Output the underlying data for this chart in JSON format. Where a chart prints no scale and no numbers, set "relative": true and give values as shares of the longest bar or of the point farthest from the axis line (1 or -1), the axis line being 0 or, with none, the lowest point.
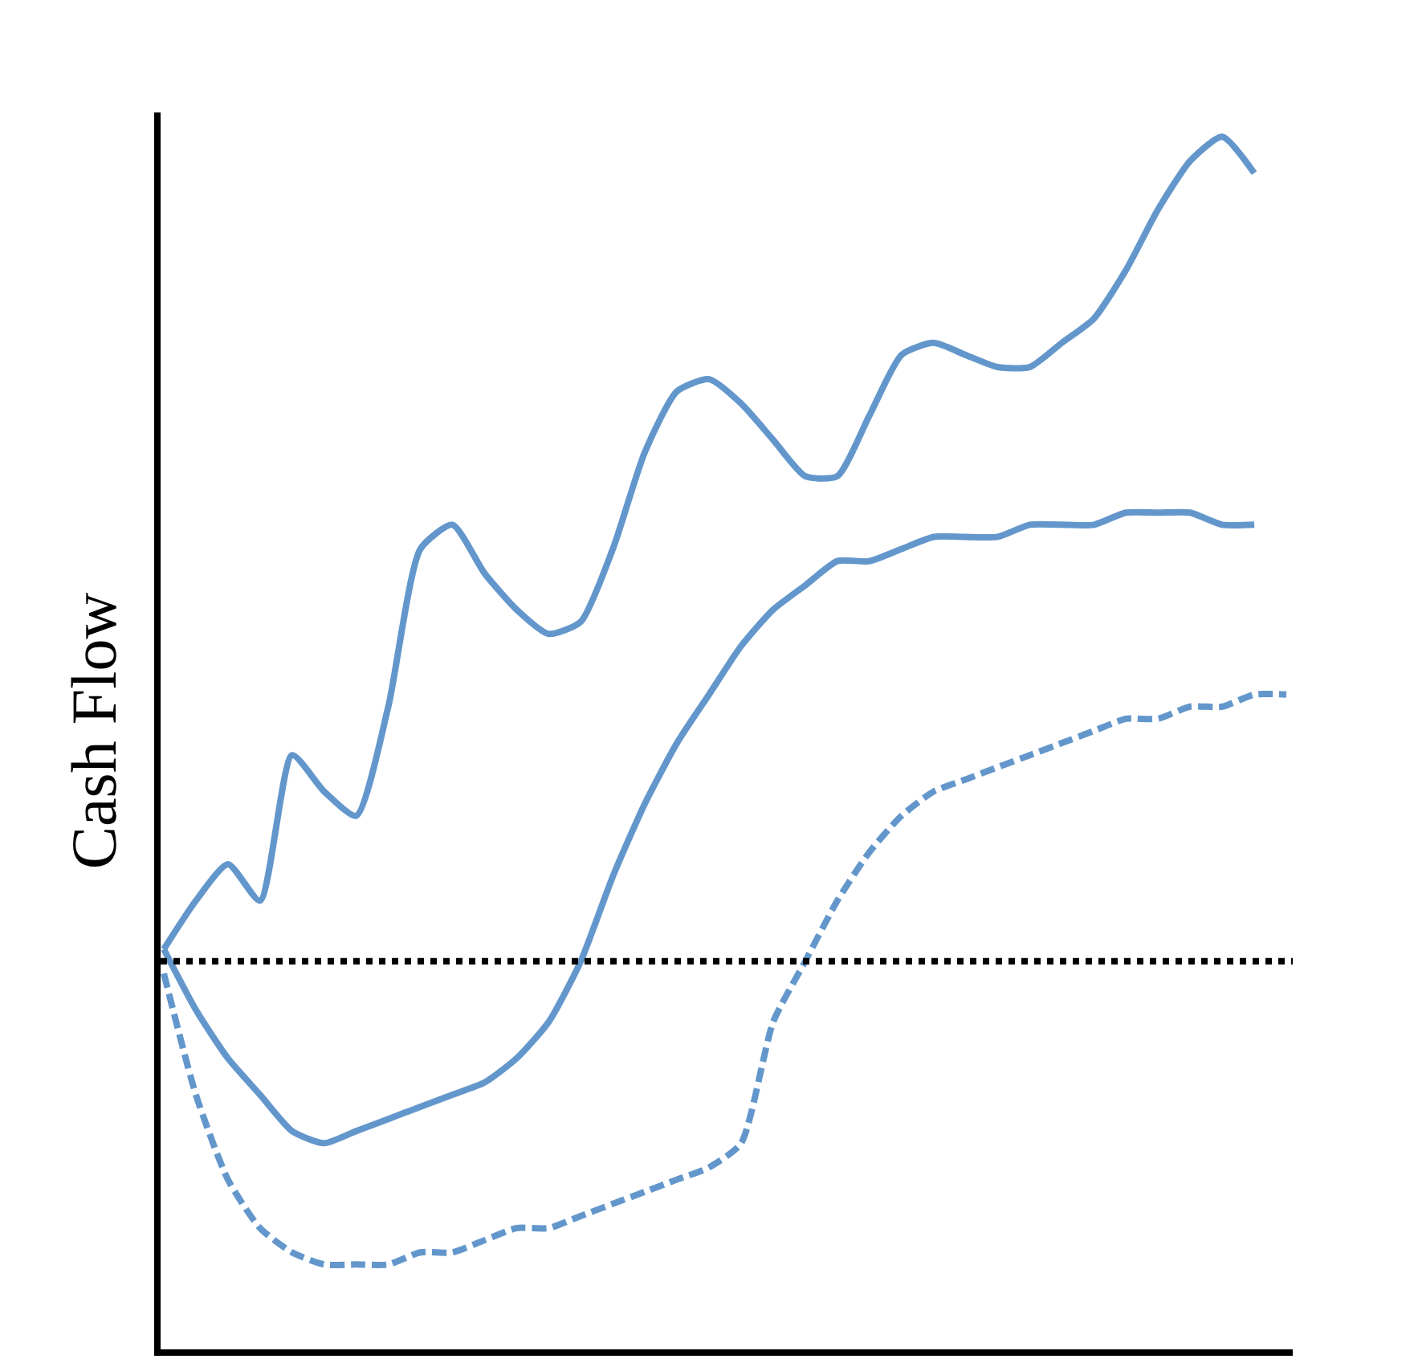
{
  "chart_data": {
    "type": "line",
    "relative": true,
    "ylabel": "Cash Flow",
    "marker": "none",
    "categories": [
      null,
      null,
      null,
      null,
      null,
      null,
      null,
      null,
      null,
      null,
      null,
      null,
      null,
      null,
      null,
      null,
      null,
      null,
      null,
      null,
      null,
      null,
      null,
      null,
      null,
      null,
      null,
      null,
      null,
      null,
      null,
      null,
      null,
      null,
      null,
      null
    ],
    "series": [
      {
        "color": "#6397cc",
        "line_style": "solid",
        "values": [
          0.33,
          0.37,
          0.4,
          0.37,
          0.49,
          0.46,
          0.44,
          0.53,
          0.66,
          0.68,
          0.64,
          0.61,
          0.59,
          0.6,
          0.66,
          0.74,
          0.79,
          0.8,
          0.78,
          0.75,
          0.72,
          0.72,
          0.77,
          0.82,
          0.83,
          0.82,
          0.81,
          0.81,
          0.83,
          0.85,
          0.89,
          0.94,
          0.98,
          1.0,
          0.97,
          null
        ]
      },
      {
        "color": "#6397cc",
        "line_style": "solid",
        "values": [
          0.33,
          0.28,
          0.24,
          0.21,
          0.18,
          0.17,
          0.18,
          0.19,
          0.2,
          0.21,
          0.22,
          0.24,
          0.27,
          0.32,
          0.39,
          0.45,
          0.5,
          0.54,
          0.58,
          0.61,
          0.63,
          0.65,
          0.65,
          0.66,
          0.67,
          0.67,
          0.67,
          0.68,
          0.68,
          0.68,
          0.69,
          0.69,
          0.69,
          0.68,
          0.68,
          null
        ]
      },
      {
        "color": "#6397cc",
        "line_style": "dashed",
        "values": [
          0.31,
          0.21,
          0.14,
          0.1,
          0.08,
          0.07,
          0.07,
          0.07,
          0.08,
          0.08,
          0.09,
          0.1,
          0.1,
          0.11,
          0.12,
          0.13,
          0.14,
          0.15,
          0.17,
          0.27,
          0.32,
          0.37,
          0.41,
          0.44,
          0.46,
          0.47,
          0.48,
          0.49,
          0.5,
          0.51,
          0.52,
          0.52,
          0.53,
          0.53,
          0.54,
          0.54
        ]
      }
    ],
    "ref_lines": [
      {
        "axis": "y",
        "value": 0.32,
        "color": "#000000",
        "line_style": "dotted"
      }
    ]
  }
}
